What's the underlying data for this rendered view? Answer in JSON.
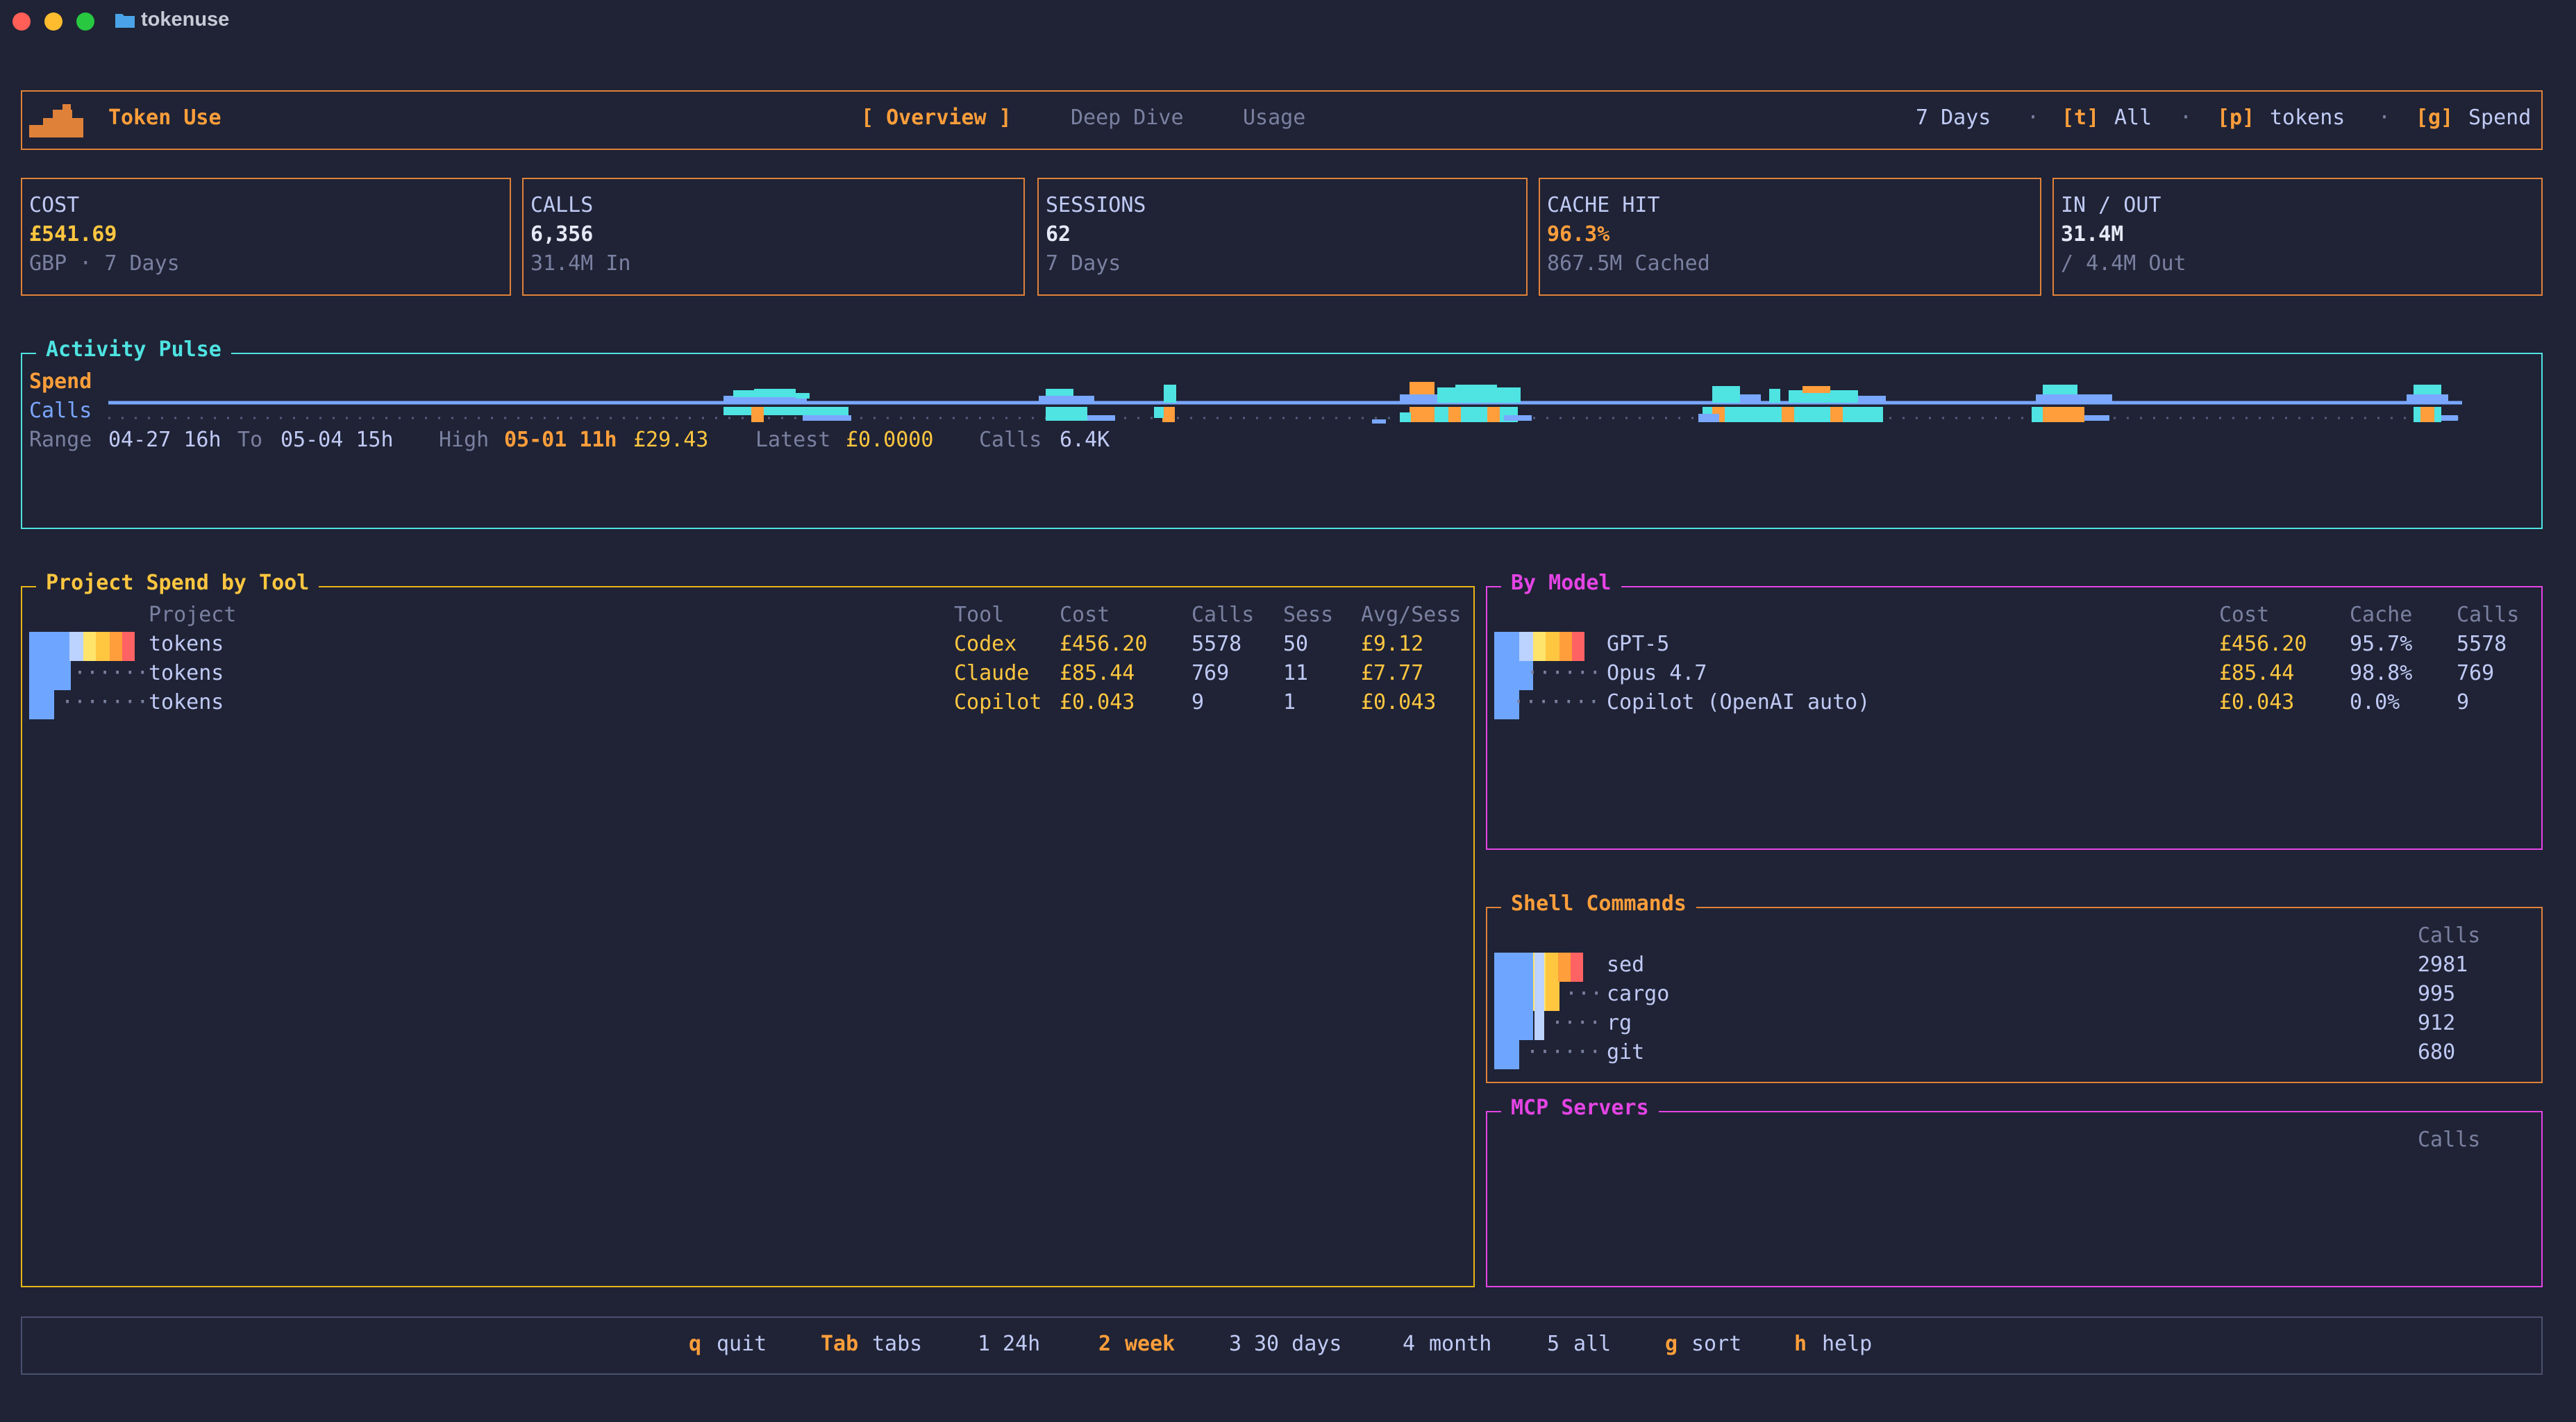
{
  "window": {
    "title": "tokenuse"
  },
  "header": {
    "app_name": "Token Use",
    "tabs": [
      {
        "label": "[ Overview ]",
        "active": true
      },
      {
        "label": "Deep Dive",
        "active": false
      },
      {
        "label": "Usage",
        "active": false
      }
    ],
    "range_label": "7 Days",
    "sep": "·",
    "toggles": [
      {
        "key": "[t]",
        "label": "All"
      },
      {
        "key": "[p]",
        "label": "tokens"
      },
      {
        "key": "[g]",
        "label": "Spend"
      }
    ]
  },
  "stats": [
    {
      "key": "COST",
      "value": "£541.69",
      "sub": "GBP · 7 Days",
      "value_color": "#ffc640"
    },
    {
      "key": "CALLS",
      "value": "6,356",
      "sub": "31.4M In",
      "value_color": "#e6e9f5"
    },
    {
      "key": "SESSIONS",
      "value": "62",
      "sub": "7 Days",
      "value_color": "#e6e9f5"
    },
    {
      "key": "CACHE HIT",
      "value": "96.3%",
      "sub": "867.5M Cached",
      "value_color": "#ff9e3b"
    },
    {
      "key": "IN / OUT",
      "value": "31.4M",
      "sub": "/ 4.4M Out",
      "value_color": "#e6e9f5"
    }
  ],
  "activity": {
    "title": "Activity Pulse",
    "row1_label": "Spend",
    "row2_label": "Calls",
    "range_label": "Range",
    "range_from": "04-27 16h",
    "to_label": "To",
    "range_to": "05-04 15h",
    "high_label": "High",
    "high_time": "05-01 11h",
    "high_value": "£29.43",
    "latest_label": "Latest",
    "latest_value": "£0.0000",
    "calls_label": "Calls",
    "calls_value": "6.4K"
  },
  "project_spend": {
    "title": "Project Spend by Tool",
    "headers": {
      "project": "Project",
      "tool": "Tool",
      "cost": "Cost",
      "calls": "Calls",
      "sess": "Sess",
      "avg": "Avg/Sess"
    },
    "rows": [
      {
        "lead": "",
        "project": "tokens",
        "tool": "Codex",
        "cost": "£456.20",
        "calls": "5578",
        "sess": "50",
        "avg": "£9.12"
      },
      {
        "lead": "······",
        "project": "tokens",
        "tool": "Claude",
        "cost": "£85.44",
        "calls": "769",
        "sess": "11",
        "avg": "£7.77"
      },
      {
        "lead": "·······",
        "project": "tokens",
        "tool": "Copilot",
        "cost": "£0.043",
        "calls": "9",
        "sess": "1",
        "avg": "£0.043"
      }
    ]
  },
  "by_model": {
    "title": "By Model",
    "headers": {
      "cost": "Cost",
      "cache": "Cache",
      "calls": "Calls"
    },
    "rows": [
      {
        "lead": "",
        "model": "GPT-5",
        "cost": "£456.20",
        "cache": "95.7%",
        "calls": "5578"
      },
      {
        "lead": "······",
        "model": "Opus 4.7",
        "cost": "£85.44",
        "cache": "98.8%",
        "calls": "769"
      },
      {
        "lead": "·······",
        "model": "Copilot (OpenAI auto)",
        "cost": "£0.043",
        "cache": "0.0%",
        "calls": "9"
      }
    ]
  },
  "shell": {
    "title": "Shell Commands",
    "headers": {
      "calls": "Calls"
    },
    "rows": [
      {
        "lead": "",
        "cmd": "sed",
        "calls": "2981"
      },
      {
        "lead": "···",
        "cmd": "cargo",
        "calls": "995"
      },
      {
        "lead": "····",
        "cmd": "rg",
        "calls": "912"
      },
      {
        "lead": "······",
        "cmd": "git",
        "calls": "680"
      }
    ]
  },
  "mcp": {
    "title": "MCP Servers",
    "headers": {
      "calls": "Calls"
    }
  },
  "footer": {
    "items": [
      {
        "key": "q",
        "label": "quit",
        "key_highlight": true
      },
      {
        "key": "Tab",
        "label": "tabs",
        "key_highlight": true
      },
      {
        "key": "1",
        "label": "24h",
        "key_highlight": false
      },
      {
        "key": "2",
        "label": "week",
        "key_highlight": true,
        "active": true
      },
      {
        "key": "3",
        "label": "30 days",
        "key_highlight": false
      },
      {
        "key": "4",
        "label": "month",
        "key_highlight": false
      },
      {
        "key": "5",
        "label": "all",
        "key_highlight": false
      },
      {
        "key": "g",
        "label": "sort",
        "key_highlight": true
      },
      {
        "key": "h",
        "label": "help",
        "key_highlight": true
      }
    ]
  },
  "colors": {
    "background": "#1f2335",
    "accent_orange": "#ff9e3b",
    "accent_yellow": "#ffc640",
    "cyan": "#4fe3e2",
    "magenta": "#e444e4",
    "blue": "#7aa7ff"
  }
}
